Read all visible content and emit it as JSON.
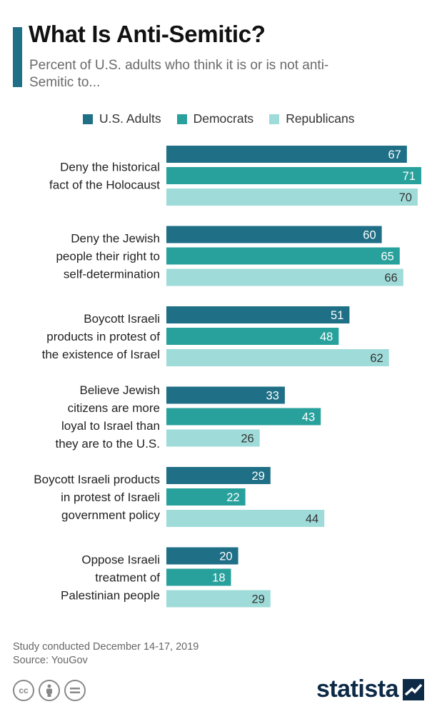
{
  "header": {
    "title": "What Is Anti-Semitic?",
    "subtitle": "Percent of U.S. adults who think it is or is not anti-Semitic to..."
  },
  "colors": {
    "accent": "#1f6f86",
    "series": [
      "#1f6f86",
      "#28a19c",
      "#9fdcd9"
    ]
  },
  "chart_data": {
    "type": "bar",
    "orientation": "horizontal",
    "legend_position": "top",
    "xlim": [
      0,
      72
    ],
    "categories": [
      [
        "Deny the historical",
        "fact of the Holocaust"
      ],
      [
        "Deny the Jewish",
        "people their right to",
        "self-determination"
      ],
      [
        "Boycott Israeli",
        "products in protest of",
        "the existence of Israel"
      ],
      [
        "Believe Jewish",
        "citizens are more",
        "loyal to Israel than",
        "they are to the U.S."
      ],
      [
        "Boycott Israeli products",
        "in protest of Israeli",
        "government policy"
      ],
      [
        "Oppose Israeli",
        "treatment of",
        "Palestinian people"
      ]
    ],
    "series": [
      {
        "name": "U.S. Adults",
        "values": [
          67,
          60,
          51,
          33,
          29,
          20
        ]
      },
      {
        "name": "Democrats",
        "values": [
          71,
          65,
          48,
          43,
          22,
          18
        ]
      },
      {
        "name": "Republicans",
        "values": [
          70,
          66,
          62,
          26,
          44,
          29
        ]
      }
    ]
  },
  "footer": {
    "note": "Study conducted December 14-17, 2019",
    "source": "Source: YouGov"
  },
  "license_icons": [
    "cc-icon",
    "attribution-icon",
    "no-derivatives-icon"
  ],
  "logo": {
    "text": "statista"
  }
}
